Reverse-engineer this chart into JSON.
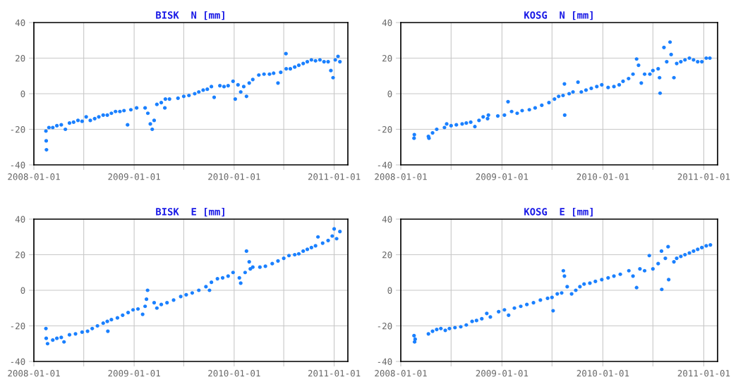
{
  "chart_data": [
    {
      "type": "scatter",
      "title": "BISK  N [mm]",
      "color": "#1a80ff",
      "marker": "circle",
      "grid": true,
      "xlim": [
        "2008-01-01",
        "2011-02-20"
      ],
      "ylim": [
        -40,
        40
      ],
      "yticks": [
        -40,
        -20,
        0,
        20,
        40
      ],
      "xticks": [
        {
          "value": "2008-01-01",
          "label": "2008-01-01"
        },
        {
          "value": "2008-07-01",
          "label": null
        },
        {
          "value": "2009-01-01",
          "label": "2009-01-01"
        },
        {
          "value": "2009-07-01",
          "label": null
        },
        {
          "value": "2010-01-01",
          "label": "2010-01-01"
        },
        {
          "value": "2010-07-01",
          "label": null
        },
        {
          "value": "2011-01-01",
          "label": "2011-01-01"
        }
      ],
      "x": [
        "2008-02-14",
        "2008-02-15",
        "2008-02-16",
        "2008-02-25",
        "2008-03-10",
        "2008-03-25",
        "2008-04-10",
        "2008-04-25",
        "2008-05-10",
        "2008-05-25",
        "2008-06-10",
        "2008-06-25",
        "2008-07-10",
        "2008-07-25",
        "2008-08-10",
        "2008-08-25",
        "2008-09-10",
        "2008-09-25",
        "2008-10-10",
        "2008-10-25",
        "2008-11-10",
        "2008-12-08",
        "2008-11-25",
        "2008-12-20",
        "2009-01-10",
        "2009-02-10",
        "2009-02-20",
        "2009-03-01",
        "2009-03-08",
        "2009-03-15",
        "2009-03-25",
        "2009-04-10",
        "2009-04-23",
        "2009-04-25",
        "2009-05-10",
        "2009-06-10",
        "2009-07-01",
        "2009-07-20",
        "2009-08-10",
        "2009-08-25",
        "2009-09-10",
        "2009-09-25",
        "2009-10-10",
        "2009-10-20",
        "2009-11-10",
        "2009-11-25",
        "2009-12-10",
        "2009-12-28",
        "2010-01-05",
        "2010-01-15",
        "2010-01-25",
        "2010-02-05",
        "2010-02-15",
        "2010-02-25",
        "2010-03-10",
        "2010-04-01",
        "2010-04-20",
        "2010-05-10",
        "2010-05-25",
        "2010-06-10",
        "2010-06-20",
        "2010-07-09",
        "2010-07-10",
        "2010-07-25",
        "2010-08-10",
        "2010-08-25",
        "2010-09-10",
        "2010-09-25",
        "2010-10-10",
        "2010-10-25",
        "2010-11-10",
        "2010-11-25",
        "2010-12-10",
        "2010-12-20",
        "2010-12-28",
        "2011-01-05",
        "2011-01-15",
        "2011-01-22"
      ],
      "values": [
        -21,
        -26.5,
        -31.5,
        -19,
        -19,
        -18,
        -17.5,
        -20,
        -16.5,
        -16,
        -15,
        -15.5,
        -13,
        -15,
        -14,
        -13,
        -12,
        -12,
        -11,
        -10,
        -10,
        -17.5,
        -9.5,
        -9,
        -8,
        -8,
        -11,
        -17,
        -20,
        -15,
        -6,
        -5,
        -8,
        -3,
        -3,
        -2.5,
        -1.5,
        -1,
        0,
        1,
        2,
        2.5,
        4,
        -2,
        4.5,
        4,
        4.5,
        7,
        -3,
        5,
        1,
        4,
        -1.5,
        6,
        8,
        10.5,
        11,
        11,
        11.5,
        6,
        12,
        22.5,
        14,
        14,
        15,
        16,
        17,
        18,
        19,
        18.5,
        19,
        18,
        18,
        13,
        9,
        19,
        21,
        18
      ]
    },
    {
      "type": "scatter",
      "title": "KOSG  N [mm]",
      "color": "#1a80ff",
      "marker": "circle",
      "grid": true,
      "xlim": [
        "2008-01-01",
        "2011-02-20"
      ],
      "ylim": [
        -40,
        40
      ],
      "yticks": [
        -40,
        -20,
        0,
        20,
        40
      ],
      "xticks": [
        {
          "value": "2008-01-01",
          "label": "2008-01-01"
        },
        {
          "value": "2008-07-01",
          "label": null
        },
        {
          "value": "2009-01-01",
          "label": "2009-01-01"
        },
        {
          "value": "2009-07-01",
          "label": null
        },
        {
          "value": "2010-01-01",
          "label": "2010-01-01"
        },
        {
          "value": "2010-07-01",
          "label": null
        },
        {
          "value": "2011-01-01",
          "label": "2011-01-01"
        }
      ],
      "x": [
        "2008-02-18",
        "2008-02-19",
        "2008-04-10",
        "2008-04-12",
        "2008-04-25",
        "2008-05-10",
        "2008-06-07",
        "2008-06-15",
        "2008-07-01",
        "2008-07-20",
        "2008-08-10",
        "2008-08-25",
        "2008-09-10",
        "2008-09-25",
        "2008-10-10",
        "2008-10-25",
        "2008-11-10",
        "2008-11-13",
        "2008-12-17",
        "2009-01-10",
        "2009-01-23",
        "2009-02-05",
        "2009-02-25",
        "2009-03-15",
        "2009-04-10",
        "2009-05-01",
        "2009-05-25",
        "2009-06-20",
        "2009-07-10",
        "2009-07-25",
        "2009-08-10",
        "2009-08-15",
        "2009-08-16",
        "2009-09-01",
        "2009-09-15",
        "2009-10-03",
        "2009-10-15",
        "2009-11-01",
        "2009-11-20",
        "2009-12-10",
        "2009-12-28",
        "2010-01-20",
        "2010-02-10",
        "2010-03-01",
        "2010-03-15",
        "2010-04-04",
        "2010-04-20",
        "2010-05-03",
        "2010-05-10",
        "2010-05-20",
        "2010-06-01",
        "2010-06-20",
        "2010-07-01",
        "2010-07-20",
        "2010-07-25",
        "2010-07-27",
        "2010-08-10",
        "2010-08-20",
        "2010-09-01",
        "2010-09-05",
        "2010-09-15",
        "2010-09-25",
        "2010-10-10",
        "2010-10-25",
        "2010-11-10",
        "2010-11-25",
        "2010-12-10",
        "2010-12-25",
        "2011-01-10",
        "2011-01-23"
      ],
      "values": [
        -25,
        -23,
        -24,
        -25,
        -22,
        -20,
        -19,
        -17,
        -18,
        -17.5,
        -17,
        -16.5,
        -16,
        -18.5,
        -15,
        -13,
        -14,
        -12,
        -12.5,
        -12,
        -4.5,
        -10,
        -11,
        -9.5,
        -9,
        -8,
        -6.5,
        -5,
        -3,
        -1.5,
        -1,
        5.5,
        -12,
        0,
        1,
        6.5,
        1,
        2,
        3,
        4,
        5,
        3.5,
        4,
        5,
        7,
        8.5,
        11,
        19.5,
        16,
        6,
        11,
        11,
        13,
        14,
        9,
        0.3,
        26,
        18,
        29,
        22,
        9,
        17,
        18,
        19,
        20,
        19,
        18,
        18,
        20,
        20
      ]
    },
    {
      "type": "scatter",
      "title": "BISK  E [mm]",
      "color": "#1a80ff",
      "marker": "circle",
      "grid": true,
      "xlim": [
        "2008-01-01",
        "2011-02-20"
      ],
      "ylim": [
        -40,
        40
      ],
      "yticks": [
        -40,
        -20,
        0,
        20,
        40
      ],
      "xticks": [
        {
          "value": "2008-01-01",
          "label": "2008-01-01"
        },
        {
          "value": "2008-07-01",
          "label": null
        },
        {
          "value": "2009-01-01",
          "label": "2009-01-01"
        },
        {
          "value": "2009-07-01",
          "label": null
        },
        {
          "value": "2010-01-01",
          "label": "2010-01-01"
        },
        {
          "value": "2010-07-01",
          "label": null
        },
        {
          "value": "2011-01-01",
          "label": "2011-01-01"
        }
      ],
      "x": [
        "2008-02-14",
        "2008-02-15",
        "2008-02-20",
        "2008-03-10",
        "2008-03-25",
        "2008-04-10",
        "2008-04-20",
        "2008-05-10",
        "2008-06-01",
        "2008-06-25",
        "2008-07-15",
        "2008-08-01",
        "2008-08-20",
        "2008-09-10",
        "2008-09-25",
        "2008-09-27",
        "2008-10-10",
        "2008-11-01",
        "2008-11-20",
        "2008-12-10",
        "2008-12-28",
        "2009-01-15",
        "2009-02-01",
        "2009-02-10",
        "2009-02-15",
        "2009-02-19",
        "2009-03-15",
        "2009-03-25",
        "2009-04-10",
        "2009-05-01",
        "2009-05-25",
        "2009-06-20",
        "2009-07-10",
        "2009-08-01",
        "2009-08-25",
        "2009-09-20",
        "2009-10-03",
        "2009-10-10",
        "2009-11-01",
        "2009-11-20",
        "2009-12-10",
        "2009-12-28",
        "2010-01-20",
        "2010-01-25",
        "2010-02-10",
        "2010-02-15",
        "2010-02-25",
        "2010-03-01",
        "2010-03-10",
        "2010-04-05",
        "2010-04-25",
        "2010-05-20",
        "2010-06-10",
        "2010-07-01",
        "2010-07-20",
        "2010-08-10",
        "2010-08-25",
        "2010-09-10",
        "2010-09-25",
        "2010-10-10",
        "2010-10-25",
        "2010-11-03",
        "2010-11-20",
        "2010-12-10",
        "2010-12-25",
        "2011-01-01",
        "2011-01-10",
        "2011-01-22"
      ],
      "values": [
        -21.5,
        -27,
        -30,
        -28,
        -27,
        -26.5,
        -29,
        -25,
        -24.5,
        -23.5,
        -23,
        -21.5,
        -20,
        -18.5,
        -17.5,
        -23,
        -16.5,
        -15.5,
        -14,
        -12.5,
        -11,
        -10.5,
        -13.5,
        -9,
        -5,
        0,
        -7,
        -10,
        -8,
        -7,
        -5.5,
        -3.5,
        -2.5,
        -1.5,
        0,
        2,
        0,
        4.5,
        6.5,
        7,
        8,
        10,
        7,
        4,
        10,
        22,
        16,
        12,
        13,
        13,
        13.5,
        15,
        16.5,
        18,
        19.5,
        20,
        20.5,
        22,
        23,
        24,
        25,
        30,
        26.5,
        28,
        30.5,
        34.5,
        29,
        33
      ]
    },
    {
      "type": "scatter",
      "title": "KOSG  E [mm]",
      "color": "#1a80ff",
      "marker": "circle",
      "grid": true,
      "xlim": [
        "2008-01-01",
        "2011-02-20"
      ],
      "ylim": [
        -40,
        40
      ],
      "yticks": [
        -40,
        -20,
        0,
        20,
        40
      ],
      "xticks": [
        {
          "value": "2008-01-01",
          "label": "2008-01-01"
        },
        {
          "value": "2008-07-01",
          "label": null
        },
        {
          "value": "2009-01-01",
          "label": "2009-01-01"
        },
        {
          "value": "2009-07-01",
          "label": null
        },
        {
          "value": "2010-01-01",
          "label": "2010-01-01"
        },
        {
          "value": "2010-07-01",
          "label": null
        },
        {
          "value": "2011-01-01",
          "label": "2011-01-01"
        }
      ],
      "x": [
        "2008-02-18",
        "2008-02-20",
        "2008-02-22",
        "2008-04-10",
        "2008-04-25",
        "2008-05-10",
        "2008-05-25",
        "2008-06-10",
        "2008-06-25",
        "2008-07-15",
        "2008-08-05",
        "2008-08-25",
        "2008-09-15",
        "2008-10-01",
        "2008-10-20",
        "2008-11-07",
        "2008-11-20",
        "2008-12-20",
        "2009-01-10",
        "2009-01-25",
        "2009-02-15",
        "2009-03-10",
        "2009-04-01",
        "2009-04-25",
        "2009-05-20",
        "2009-06-15",
        "2009-07-01",
        "2009-07-05",
        "2009-07-20",
        "2009-08-05",
        "2009-08-11",
        "2009-08-15",
        "2009-08-25",
        "2009-09-10",
        "2009-09-25",
        "2009-10-10",
        "2009-10-25",
        "2009-11-15",
        "2009-12-05",
        "2009-12-28",
        "2010-01-20",
        "2010-02-10",
        "2010-03-05",
        "2010-04-05",
        "2010-04-20",
        "2010-05-03",
        "2010-05-15",
        "2010-06-01",
        "2010-06-18",
        "2010-07-01",
        "2010-07-20",
        "2010-08-01",
        "2010-08-02",
        "2010-08-15",
        "2010-08-25",
        "2010-08-27",
        "2010-09-15",
        "2010-09-25",
        "2010-10-10",
        "2010-10-25",
        "2010-11-10",
        "2010-11-25",
        "2010-12-10",
        "2010-12-25",
        "2011-01-10",
        "2011-01-25"
      ],
      "values": [
        -25.5,
        -29,
        -27.5,
        -24.5,
        -23,
        -22,
        -21.5,
        -22.5,
        -21.5,
        -21,
        -20.5,
        -19.5,
        -17.5,
        -17,
        -16,
        -13,
        -15,
        -12,
        -11,
        -14,
        -10,
        -9,
        -8,
        -7,
        -5.5,
        -4.5,
        -4,
        -11.5,
        -2,
        -1.5,
        11,
        8,
        2,
        -2,
        0,
        2,
        3.5,
        4,
        5,
        6,
        7,
        8,
        9,
        11,
        8,
        1.5,
        12,
        11,
        19.5,
        12,
        15,
        22,
        0.5,
        18,
        24.5,
        6,
        16,
        18,
        19,
        20,
        21,
        22,
        23,
        24,
        25,
        25.5
      ]
    }
  ]
}
